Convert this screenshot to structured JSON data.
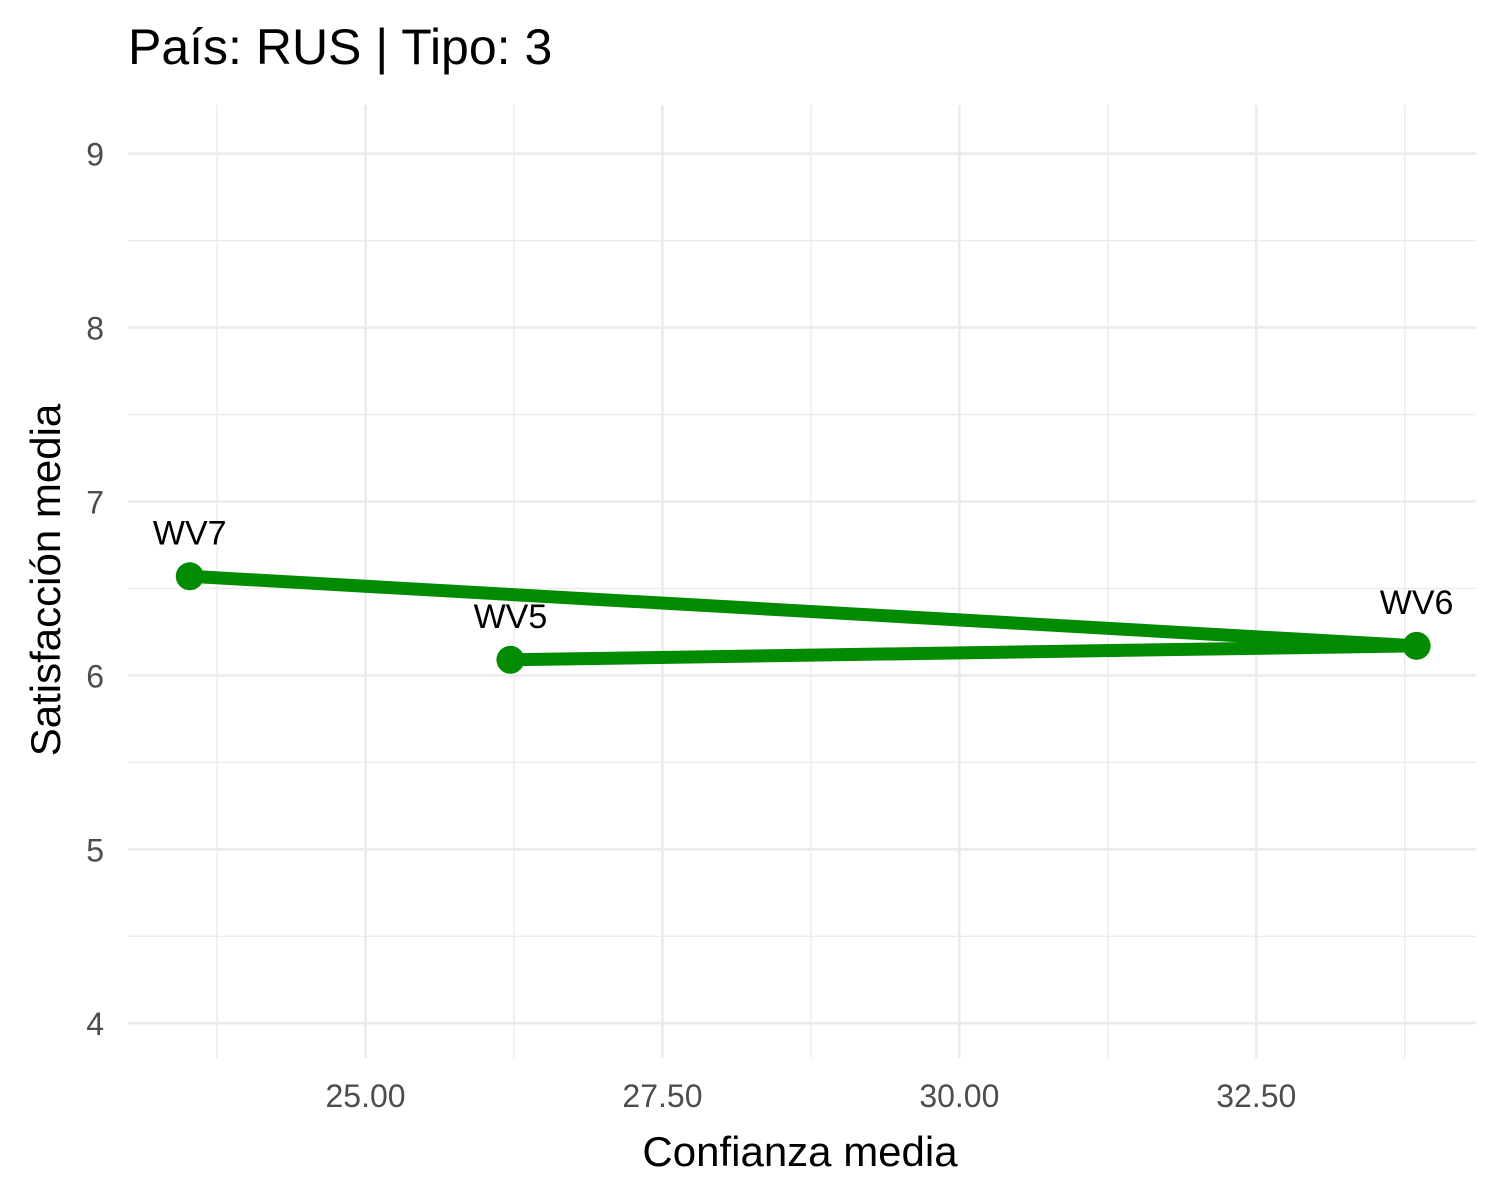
{
  "chart_data": {
    "type": "line",
    "title": "País: RUS | Tipo: 3",
    "xlabel": "Confianza media",
    "ylabel": "Satisfacción media",
    "xlim": [
      23.0,
      34.35
    ],
    "ylim": [
      3.8,
      9.28
    ],
    "x_ticks": [
      25.0,
      27.5,
      30.0,
      32.5
    ],
    "x_tick_labels": [
      "25.00",
      "27.50",
      "30.00",
      "32.50"
    ],
    "y_ticks": [
      4,
      5,
      6,
      7,
      8,
      9
    ],
    "y_tick_labels": [
      "4",
      "5",
      "6",
      "7",
      "8",
      "9"
    ],
    "grid": true,
    "color": "#008B00",
    "points": [
      {
        "label": "WV5",
        "x": 26.22,
        "y": 6.09
      },
      {
        "label": "WV6",
        "x": 33.85,
        "y": 6.17
      },
      {
        "label": "WV7",
        "x": 23.52,
        "y": 6.57
      }
    ]
  }
}
